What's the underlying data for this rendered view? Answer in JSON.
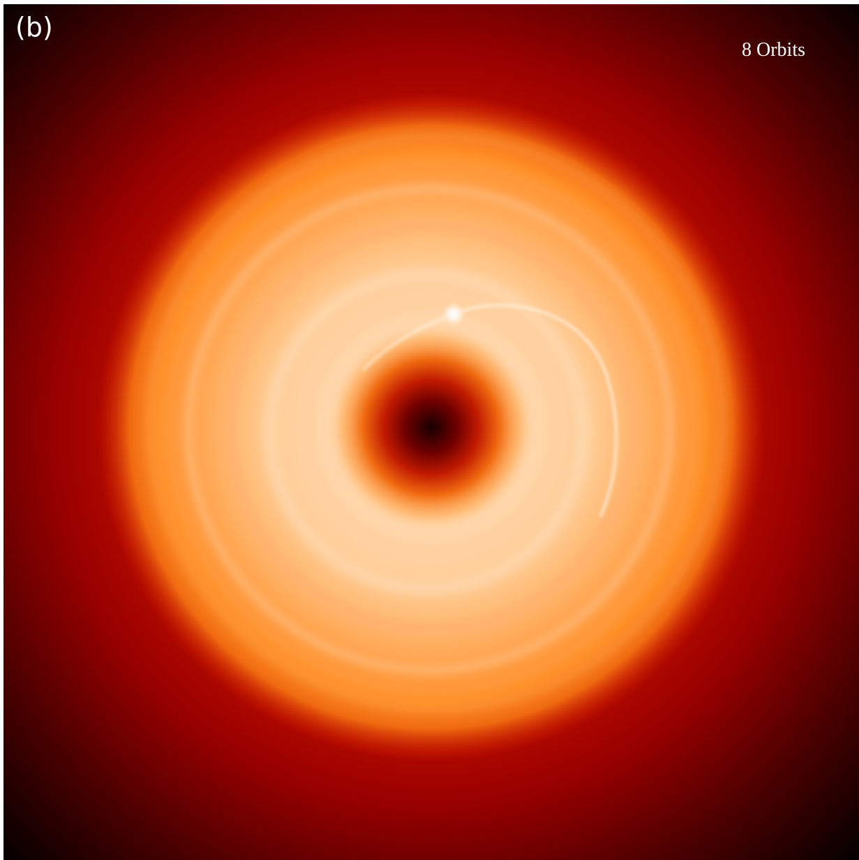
{
  "panel_label": "(b)",
  "annotation": "8 Orbits"
}
